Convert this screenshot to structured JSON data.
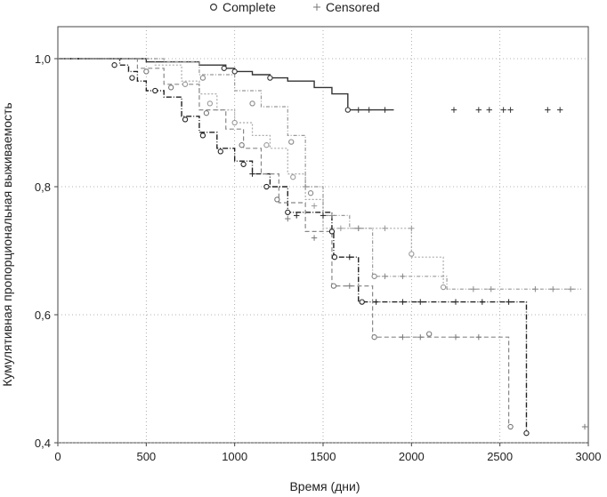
{
  "chart_data": {
    "type": "line",
    "subtype": "kaplan-meier-step",
    "xlabel": "Время (дни)",
    "ylabel": "Кумулятивная пропорциональная выживаемость",
    "xlim": [
      0,
      3000
    ],
    "ylim": [
      0.4,
      1.05
    ],
    "xticks": [
      "0",
      "500",
      "1000",
      "1500",
      "2000",
      "2500",
      "3000"
    ],
    "yticks": [
      "0,4",
      "0,6",
      "0,8",
      "1,0"
    ],
    "ytick_values": [
      0.4,
      0.6,
      0.8,
      1.0
    ],
    "xtick_values": [
      0,
      500,
      1000,
      1500,
      2000,
      2500,
      3000
    ],
    "grid": true,
    "legend_position": "top-center",
    "legend": [
      {
        "label": "Complete",
        "marker": "circle"
      },
      {
        "label": "Censored",
        "marker": "cross"
      }
    ],
    "series": [
      {
        "style": "solid-dark",
        "steps": [
          [
            0,
            1.0
          ],
          [
            300,
            1.0
          ],
          [
            500,
            0.995
          ],
          [
            800,
            0.99
          ],
          [
            950,
            0.985
          ],
          [
            1000,
            0.98
          ],
          [
            1100,
            0.975
          ],
          [
            1200,
            0.97
          ],
          [
            1300,
            0.965
          ],
          [
            1450,
            0.955
          ],
          [
            1550,
            0.945
          ],
          [
            1640,
            0.92
          ],
          [
            1900,
            0.92
          ]
        ],
        "complete": [
          [
            940,
            0.985
          ],
          [
            1000,
            0.98
          ],
          [
            1200,
            0.97
          ],
          [
            1640,
            0.92
          ]
        ],
        "censored": [
          [
            1700,
            0.92
          ],
          [
            1760,
            0.92
          ],
          [
            1850,
            0.92
          ],
          [
            2240,
            0.92
          ],
          [
            2380,
            0.92
          ],
          [
            2440,
            0.92
          ],
          [
            2520,
            0.92
          ],
          [
            2560,
            0.92
          ],
          [
            2770,
            0.92
          ],
          [
            2840,
            0.92
          ]
        ]
      },
      {
        "style": "dark-steep",
        "steps": [
          [
            0,
            1.0
          ],
          [
            300,
            1.0
          ],
          [
            350,
            0.99
          ],
          [
            400,
            0.98
          ],
          [
            450,
            0.965
          ],
          [
            500,
            0.95
          ],
          [
            600,
            0.94
          ],
          [
            700,
            0.91
          ],
          [
            800,
            0.885
          ],
          [
            900,
            0.86
          ],
          [
            1000,
            0.84
          ],
          [
            1100,
            0.82
          ],
          [
            1200,
            0.8
          ],
          [
            1300,
            0.76
          ],
          [
            1550,
            0.73
          ],
          [
            1560,
            0.69
          ],
          [
            1700,
            0.62
          ],
          [
            2650,
            0.62
          ],
          [
            2650,
            0.415
          ]
        ],
        "complete": [
          [
            320,
            0.99
          ],
          [
            420,
            0.97
          ],
          [
            550,
            0.95
          ],
          [
            720,
            0.905
          ],
          [
            820,
            0.88
          ],
          [
            920,
            0.855
          ],
          [
            1050,
            0.835
          ],
          [
            1180,
            0.8
          ],
          [
            1300,
            0.76
          ],
          [
            1550,
            0.73
          ],
          [
            1565,
            0.69
          ],
          [
            1720,
            0.62
          ],
          [
            2650,
            0.415
          ]
        ],
        "censored": [
          [
            1100,
            0.82
          ],
          [
            1350,
            0.755
          ],
          [
            1500,
            0.755
          ],
          [
            1650,
            0.69
          ],
          [
            1800,
            0.62
          ],
          [
            1950,
            0.62
          ],
          [
            2050,
            0.62
          ],
          [
            2250,
            0.62
          ],
          [
            2400,
            0.62
          ],
          [
            2550,
            0.62
          ]
        ]
      },
      {
        "style": "light-dotted",
        "steps": [
          [
            0,
            1.0
          ],
          [
            550,
            0.99
          ],
          [
            700,
            0.965
          ],
          [
            800,
            0.945
          ],
          [
            900,
            0.92
          ],
          [
            1000,
            0.9
          ],
          [
            1100,
            0.88
          ],
          [
            1200,
            0.86
          ],
          [
            1300,
            0.82
          ],
          [
            1400,
            0.78
          ],
          [
            1500,
            0.735
          ],
          [
            2000,
            0.735
          ],
          [
            2000,
            0.69
          ],
          [
            2180,
            0.69
          ],
          [
            2180,
            0.64
          ],
          [
            2220,
            0.64
          ]
        ],
        "complete": [
          [
            720,
            0.96
          ],
          [
            860,
            0.93
          ],
          [
            1000,
            0.9
          ],
          [
            1180,
            0.865
          ],
          [
            1330,
            0.815
          ],
          [
            2000,
            0.695
          ],
          [
            2180,
            0.643
          ]
        ],
        "censored": [
          [
            1450,
            0.77
          ],
          [
            1600,
            0.735
          ],
          [
            1700,
            0.735
          ],
          [
            1850,
            0.735
          ],
          [
            2000,
            0.735
          ]
        ]
      },
      {
        "style": "gray-dashed",
        "steps": [
          [
            0,
            1.0
          ],
          [
            450,
            0.985
          ],
          [
            600,
            0.96
          ],
          [
            800,
            0.92
          ],
          [
            950,
            0.89
          ],
          [
            1050,
            0.86
          ],
          [
            1150,
            0.82
          ],
          [
            1250,
            0.775
          ],
          [
            1400,
            0.73
          ],
          [
            1550,
            0.71
          ],
          [
            1550,
            0.645
          ],
          [
            1750,
            0.645
          ],
          [
            1780,
            0.565
          ],
          [
            2100,
            0.565
          ],
          [
            2550,
            0.565
          ],
          [
            2550,
            0.425
          ],
          [
            2560,
            0.425
          ]
        ],
        "complete": [
          [
            500,
            0.98
          ],
          [
            640,
            0.955
          ],
          [
            840,
            0.915
          ],
          [
            1040,
            0.865
          ],
          [
            1240,
            0.78
          ],
          [
            1560,
            0.645
          ],
          [
            1790,
            0.565
          ],
          [
            2100,
            0.57
          ],
          [
            2560,
            0.425
          ]
        ],
        "censored": [
          [
            1300,
            0.75
          ],
          [
            1450,
            0.72
          ],
          [
            1650,
            0.645
          ],
          [
            1950,
            0.565
          ],
          [
            2050,
            0.565
          ],
          [
            2250,
            0.565
          ],
          [
            2380,
            0.565
          ],
          [
            2980,
            0.425
          ]
        ]
      },
      {
        "style": "gray-dashdot",
        "steps": [
          [
            0,
            1.0
          ],
          [
            600,
            0.995
          ],
          [
            800,
            0.975
          ],
          [
            1000,
            0.95
          ],
          [
            1150,
            0.925
          ],
          [
            1300,
            0.88
          ],
          [
            1400,
            0.8
          ],
          [
            1500,
            0.755
          ],
          [
            1650,
            0.735
          ],
          [
            1780,
            0.66
          ],
          [
            2200,
            0.66
          ],
          [
            2200,
            0.64
          ],
          [
            2960,
            0.64
          ]
        ],
        "complete": [
          [
            820,
            0.97
          ],
          [
            1100,
            0.93
          ],
          [
            1320,
            0.87
          ],
          [
            1430,
            0.79
          ],
          [
            1790,
            0.66
          ]
        ],
        "censored": [
          [
            1400,
            0.8
          ],
          [
            1550,
            0.755
          ],
          [
            1700,
            0.735
          ],
          [
            1850,
            0.66
          ],
          [
            1950,
            0.66
          ],
          [
            2350,
            0.64
          ],
          [
            2450,
            0.64
          ],
          [
            2700,
            0.64
          ],
          [
            2800,
            0.64
          ],
          [
            2900,
            0.64
          ]
        ]
      }
    ]
  }
}
